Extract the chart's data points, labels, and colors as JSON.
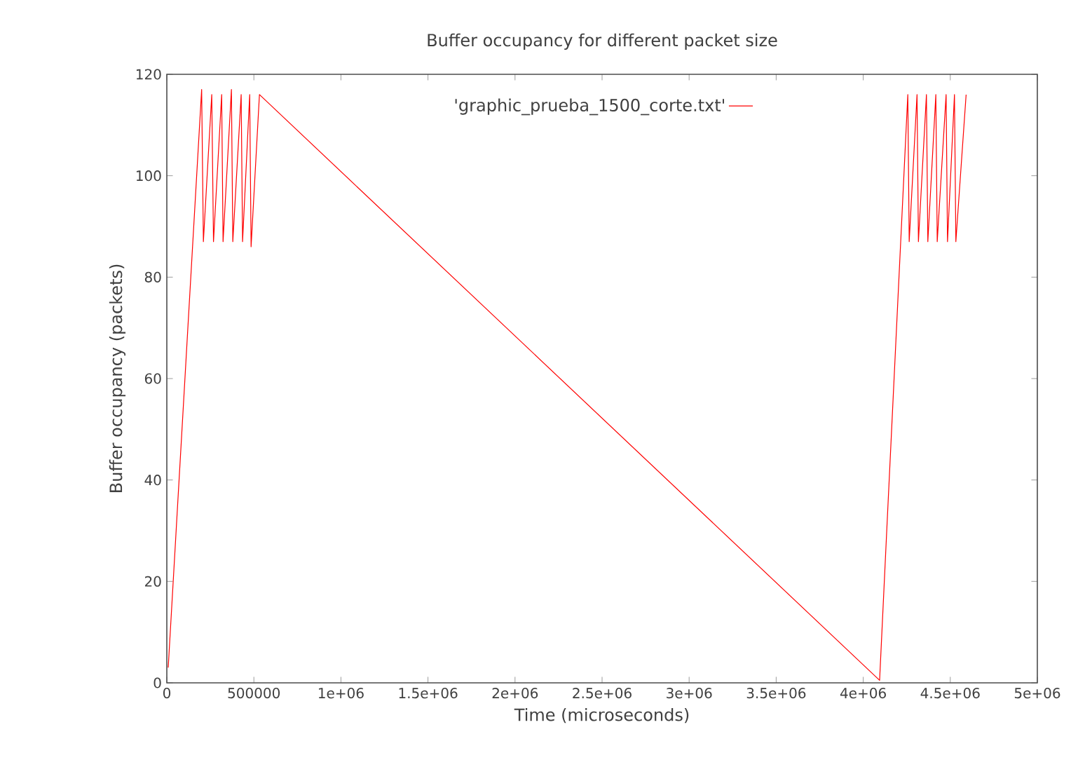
{
  "chart_data": {
    "type": "line",
    "title": "Buffer occupancy for different packet size",
    "xlabel": "Time (microseconds)",
    "ylabel": "Buffer occupancy (packets)",
    "xlim": [
      0,
      5000000
    ],
    "ylim": [
      0,
      120
    ],
    "xticks": [
      0,
      500000,
      {
        "value": 1000000,
        "label": "1e+06"
      },
      {
        "value": 1500000,
        "label": "1.5e+06"
      },
      {
        "value": 2000000,
        "label": "2e+06"
      },
      {
        "value": 2500000,
        "label": "2.5e+06"
      },
      {
        "value": 3000000,
        "label": "3e+06"
      },
      {
        "value": 3500000,
        "label": "3.5e+06"
      },
      {
        "value": 4000000,
        "label": "4e+06"
      },
      {
        "value": 4500000,
        "label": "4.5e+06"
      },
      {
        "value": 5000000,
        "label": "5e+06"
      }
    ],
    "yticks": [
      0,
      20,
      40,
      60,
      80,
      100,
      120
    ],
    "legend": "top",
    "grid": false,
    "marker": "none",
    "line_style": "solid",
    "series": [
      {
        "name": "'graphic_prueba_1500_corte.txt'",
        "color": "#ff0000",
        "x": [
          8000,
          200000,
          210000,
          258000,
          268000,
          315000,
          323000,
          371000,
          379000,
          427000,
          435000,
          476000,
          484000,
          532000,
          4094000,
          4135000,
          4256000,
          4264000,
          4309000,
          4317000,
          4363000,
          4371000,
          4417000,
          4425000,
          4476000,
          4484000,
          4524000,
          4532000,
          4591000
        ],
        "values": [
          3,
          117,
          87,
          116,
          87,
          116,
          87,
          117,
          87,
          116,
          87,
          116,
          86,
          116,
          0.5,
          30,
          116,
          87,
          116,
          87,
          116,
          87,
          116,
          87,
          116,
          87,
          116,
          87,
          116
        ]
      }
    ]
  }
}
